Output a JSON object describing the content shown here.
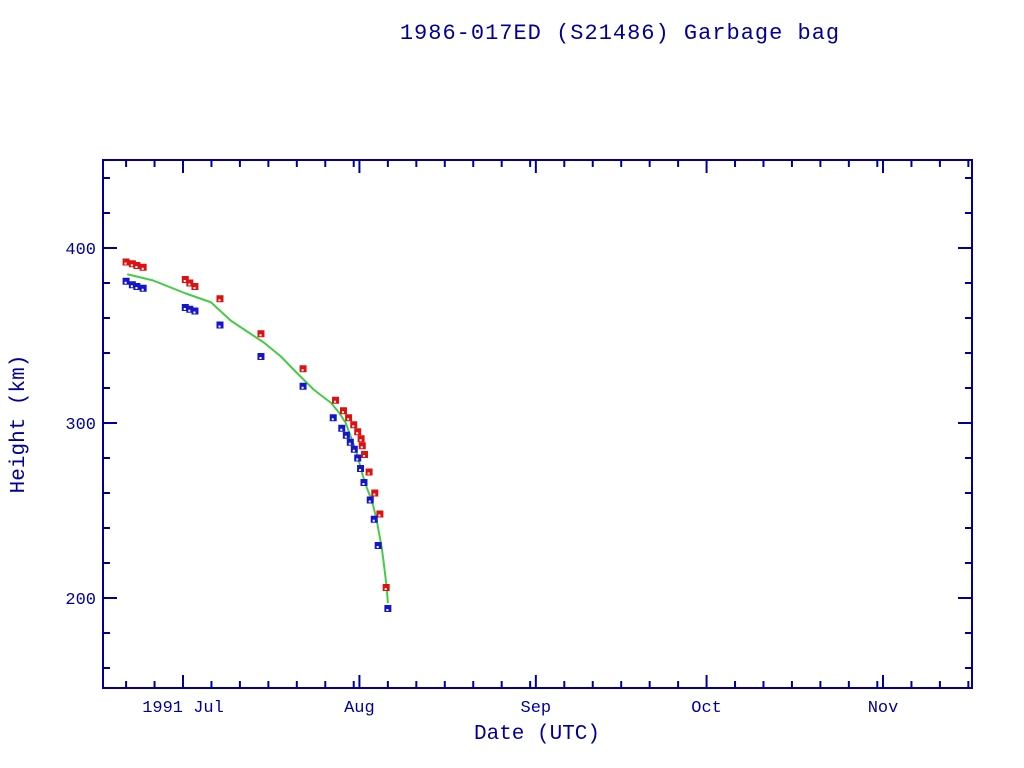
{
  "title": "1986-017ED (S21486) Garbage bag",
  "axes": {
    "xlabel": "Date (UTC)",
    "ylabel": "Height (km)"
  },
  "colors": {
    "axis": "#000099",
    "text": "#000099",
    "background": "#ffffff",
    "red_marker": "#dd1111",
    "blue_marker": "#1515cc",
    "fit_curve": "#44cc44"
  },
  "chart_data": {
    "type": "scatter",
    "title": "1986-017ED (S21486) Garbage bag",
    "xlabel": "Date (UTC)",
    "ylabel": "Height (km)",
    "x_unit": "days since 1991-07-01",
    "xlim_days": [
      -14,
      138.6
    ],
    "ylim": [
      147,
      450
    ],
    "grid": false,
    "legend": "none",
    "x_major_ticks": [
      {
        "day": 0,
        "label": "1991 Jul"
      },
      {
        "day": 31,
        "label": "Aug"
      },
      {
        "day": 62,
        "label": "Sep"
      },
      {
        "day": 92,
        "label": "Oct"
      },
      {
        "day": 123,
        "label": "Nov"
      }
    ],
    "x_minor_tick_days": [
      -10,
      -5,
      5,
      10,
      15,
      20,
      25,
      30,
      36,
      41,
      46,
      51,
      56,
      61,
      67,
      72,
      77,
      82,
      87,
      97,
      102,
      107,
      112,
      117,
      122,
      128,
      133,
      138
    ],
    "y_major_ticks": [
      {
        "value": 200,
        "label": "200"
      },
      {
        "value": 300,
        "label": "300"
      },
      {
        "value": 400,
        "label": "400"
      }
    ],
    "y_minor_ticks": [
      160,
      180,
      220,
      240,
      260,
      280,
      320,
      340,
      360,
      380,
      420,
      440
    ],
    "series": [
      {
        "name": "red-squares",
        "marker": "square",
        "color": "#dd1111",
        "points": [
          [
            -10.0,
            392
          ],
          [
            -8.9,
            391
          ],
          [
            -8.1,
            390
          ],
          [
            -7.0,
            389
          ],
          [
            0.4,
            382
          ],
          [
            1.2,
            380
          ],
          [
            2.1,
            378
          ],
          [
            6.5,
            371
          ],
          [
            13.7,
            351
          ],
          [
            21.1,
            331
          ],
          [
            26.8,
            313
          ],
          [
            28.2,
            307
          ],
          [
            29.1,
            303
          ],
          [
            30.0,
            299
          ],
          [
            30.7,
            295
          ],
          [
            31.3,
            291
          ],
          [
            31.5,
            287
          ],
          [
            31.9,
            282
          ],
          [
            32.7,
            272
          ],
          [
            33.7,
            260
          ],
          [
            34.6,
            248
          ],
          [
            35.7,
            206
          ]
        ]
      },
      {
        "name": "blue-squares",
        "marker": "square",
        "color": "#1515cc",
        "points": [
          [
            -10.0,
            381
          ],
          [
            -8.9,
            379
          ],
          [
            -8.1,
            378
          ],
          [
            -7.0,
            377
          ],
          [
            0.4,
            366
          ],
          [
            1.2,
            365
          ],
          [
            2.1,
            364
          ],
          [
            6.5,
            356
          ],
          [
            13.7,
            338
          ],
          [
            21.1,
            321
          ],
          [
            26.4,
            303
          ],
          [
            27.9,
            297
          ],
          [
            28.7,
            293
          ],
          [
            29.4,
            289
          ],
          [
            30.1,
            285
          ],
          [
            30.7,
            280
          ],
          [
            31.2,
            274
          ],
          [
            31.8,
            266
          ],
          [
            32.9,
            256
          ],
          [
            33.6,
            245
          ],
          [
            34.3,
            230
          ],
          [
            36.0,
            194
          ]
        ]
      },
      {
        "name": "fit-curve",
        "marker": "none",
        "line": true,
        "color": "#44cc44",
        "points": [
          [
            -9.8,
            385
          ],
          [
            -5.3,
            381.5
          ],
          [
            0.5,
            374
          ],
          [
            4.9,
            369
          ],
          [
            8.4,
            358.5
          ],
          [
            11.4,
            352
          ],
          [
            14.2,
            346
          ],
          [
            17.2,
            338
          ],
          [
            20.2,
            328
          ],
          [
            23.0,
            319
          ],
          [
            26.0,
            311.5
          ],
          [
            27.4,
            306
          ],
          [
            28.6,
            300
          ],
          [
            29.5,
            292
          ],
          [
            30.4,
            284
          ],
          [
            31.0,
            277
          ],
          [
            31.6,
            270
          ],
          [
            32.3,
            263
          ],
          [
            32.9,
            258
          ],
          [
            33.4,
            253
          ],
          [
            34.0,
            245
          ],
          [
            34.4,
            238
          ],
          [
            34.9,
            229
          ],
          [
            35.2,
            222
          ],
          [
            35.5,
            214
          ],
          [
            35.8,
            206
          ],
          [
            36.0,
            197
          ]
        ]
      }
    ]
  }
}
